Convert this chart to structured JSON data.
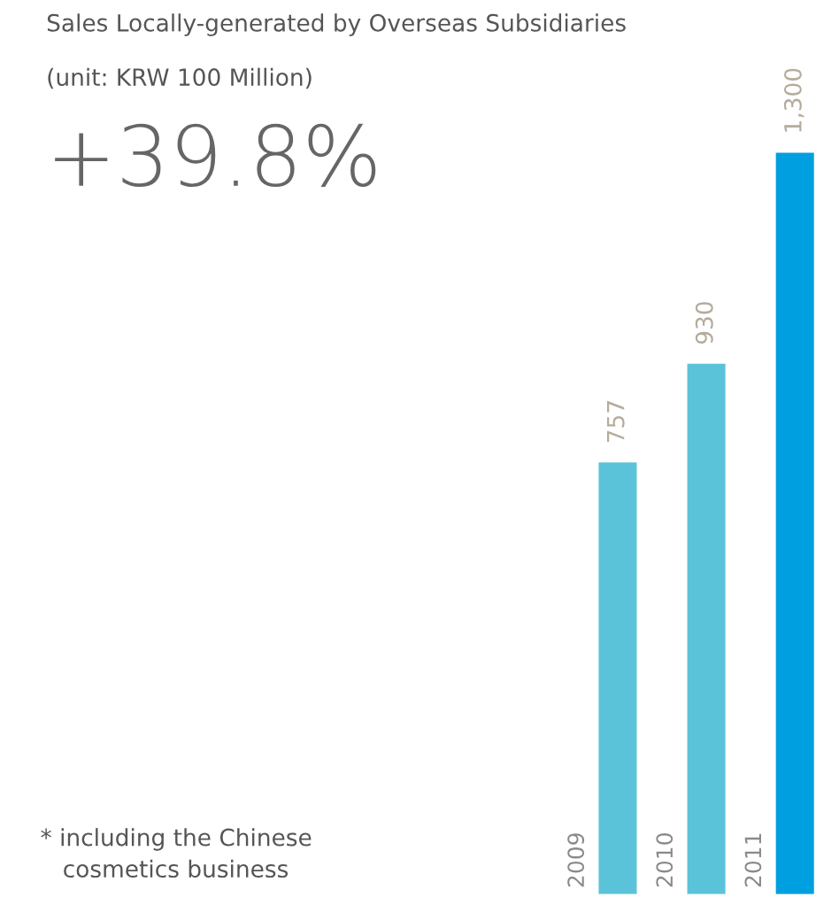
{
  "chart_data": {
    "type": "bar",
    "title": "Sales Locally-generated by Overseas Subsidiaries",
    "subtitle": "(unit: KRW 100 Million)",
    "categories": [
      "2009",
      "2010",
      "2011"
    ],
    "values": [
      757,
      930,
      1300
    ],
    "colors": [
      "#5bc3d9",
      "#5bc3d9",
      "#009fdf"
    ],
    "value_labels": [
      "757",
      "930",
      "1,300"
    ],
    "annotations": [
      "+39.8%",
      "* including the Chinese\n   cosmetics business"
    ]
  }
}
